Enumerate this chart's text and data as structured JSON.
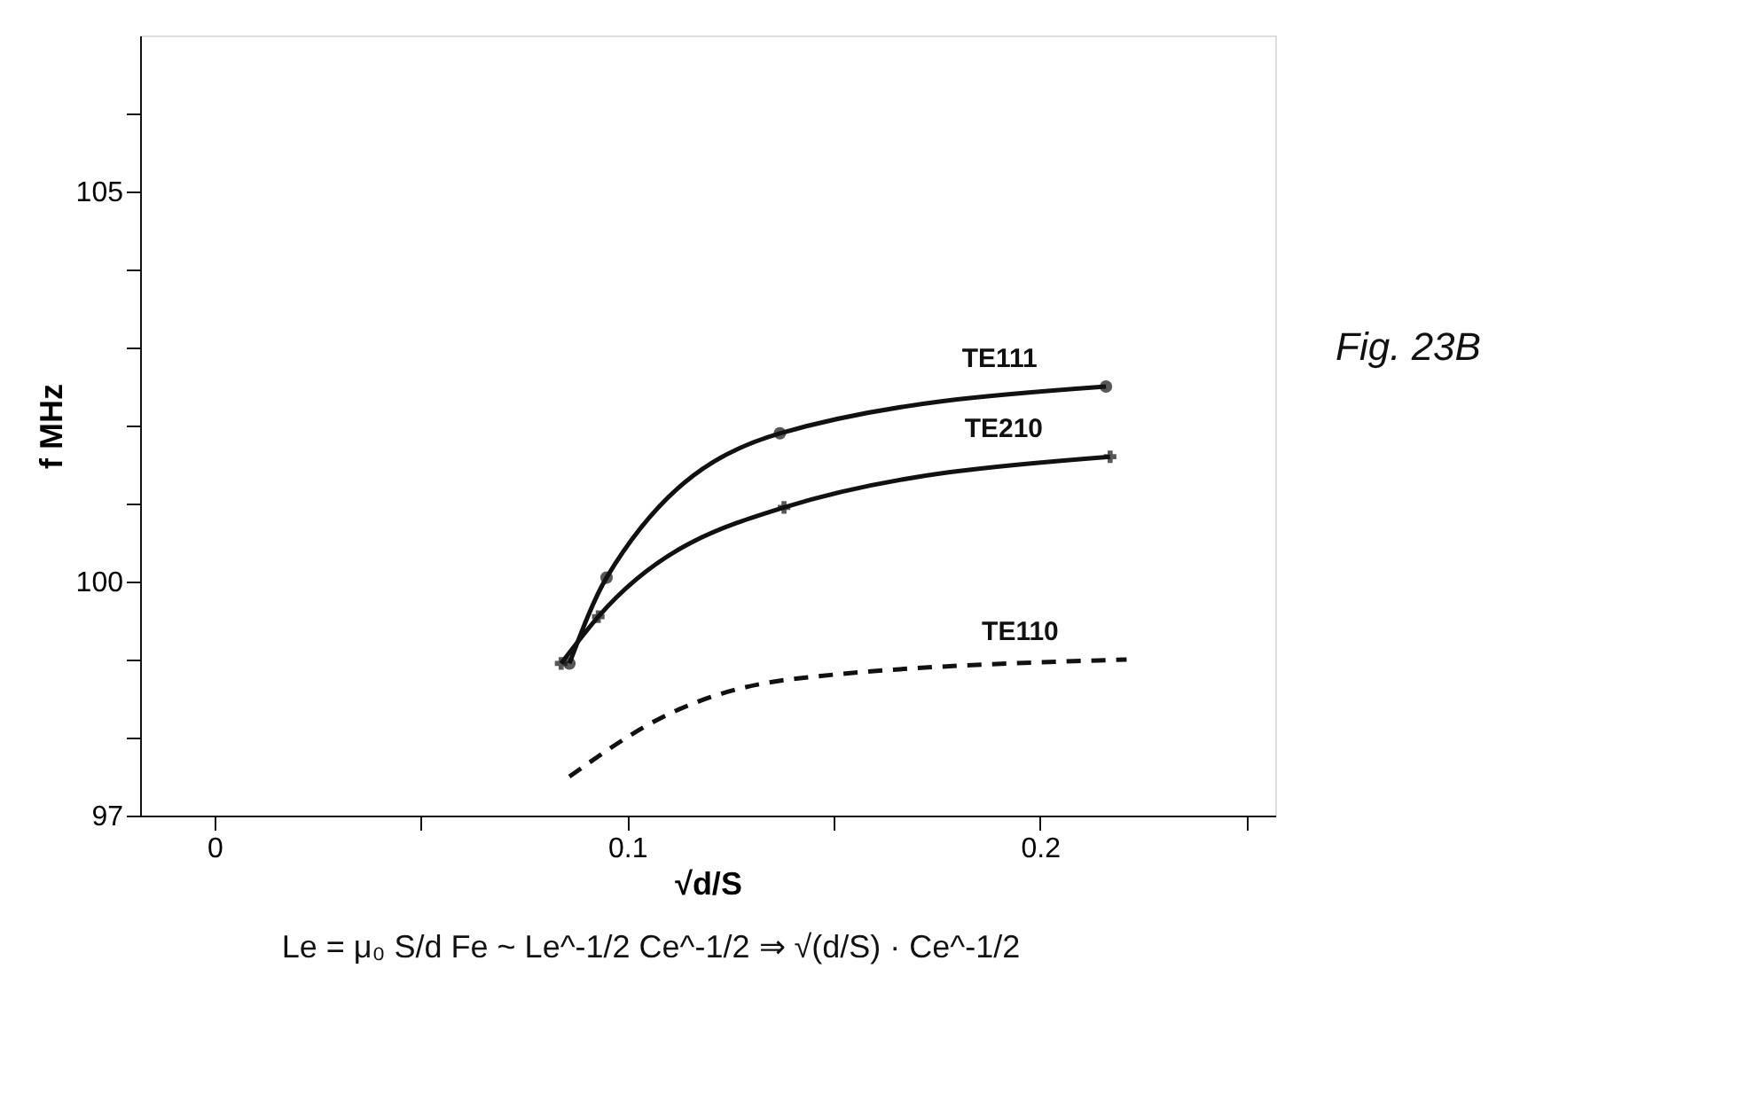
{
  "chart_data": {
    "type": "line",
    "xlabel": "√d/S",
    "ylabel": "f MHz",
    "xlim": [
      -0.018,
      0.257
    ],
    "ylim": [
      97,
      107
    ],
    "xticks": [
      0,
      {
        "value": 0.05,
        "label": null
      },
      0.1,
      {
        "value": 0.15,
        "label": null
      },
      0.2,
      {
        "value": 0.25,
        "label": null
      }
    ],
    "yticks": [
      97,
      {
        "value": 98,
        "label": null
      },
      {
        "value": 99,
        "label": null
      },
      100,
      {
        "value": 101,
        "label": null
      },
      {
        "value": 102,
        "label": null
      },
      {
        "value": 103,
        "label": null
      },
      {
        "value": 104,
        "label": null
      },
      105,
      {
        "value": 106,
        "label": null
      }
    ],
    "grid": false,
    "legend": false,
    "series": [
      {
        "name": "TE111",
        "color": "#111111",
        "marker": "circle",
        "line_style": "solid",
        "x": [
          0.086,
          0.095,
          0.137,
          0.216
        ],
        "values": [
          98.95,
          100.05,
          101.9,
          102.5
        ]
      },
      {
        "name": "TE210",
        "color": "#111111",
        "marker": "cross",
        "line_style": "solid",
        "x": [
          0.084,
          0.093,
          0.138,
          0.217
        ],
        "values": [
          98.95,
          99.55,
          100.95,
          101.6
        ]
      },
      {
        "name": "TE110",
        "color": "#111111",
        "marker": "none",
        "line_style": "dashed",
        "x": [
          0.086,
          0.11,
          0.14,
          0.221
        ],
        "values": [
          97.5,
          98.3,
          98.75,
          99.0
        ]
      }
    ],
    "annotations": [
      "Fig. 23B",
      "Le = μ₀ S/d    Fe ~ Le^-1/2 Ce^-1/2 ⇒ √(d/S) · Ce^-1/2"
    ]
  }
}
